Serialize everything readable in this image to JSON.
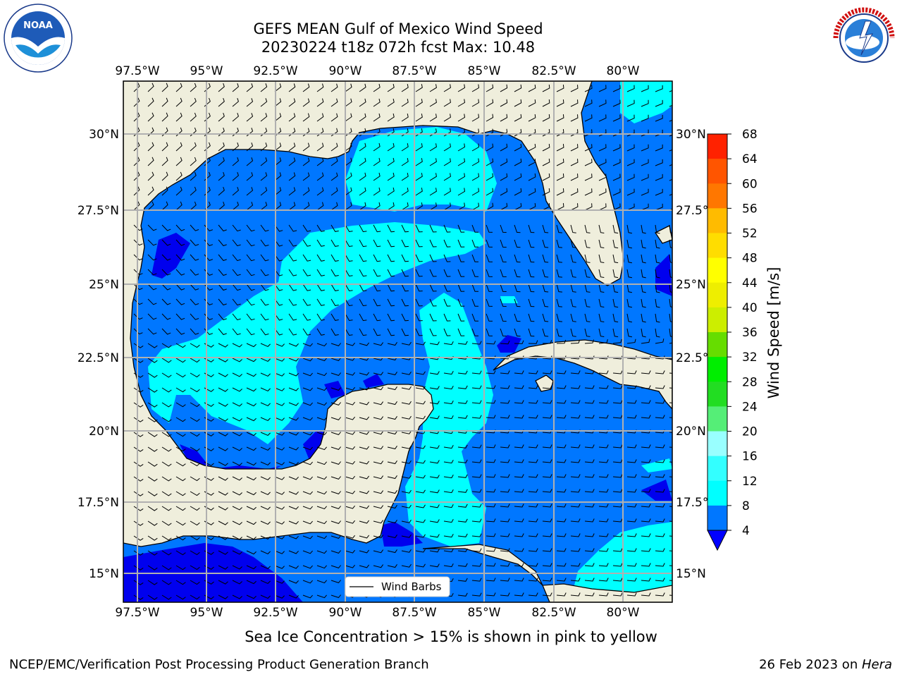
{
  "title": {
    "line1": "GEFS MEAN Gulf of Mexico Wind Speed",
    "line2": "20230224 t18z 072h fcst   Max: 10.48"
  },
  "logos": {
    "left": "NOAA",
    "right": "NATIONAL WEATHER SERVICE"
  },
  "map": {
    "lon_ticks": [
      "97.5°W",
      "95°W",
      "92.5°W",
      "90°W",
      "87.5°W",
      "85°W",
      "82.5°W",
      "80°W"
    ],
    "lat_ticks_left": [
      "30°N",
      "27.5°N",
      "25°N",
      "22.5°N",
      "20°N",
      "17.5°N",
      "15°N"
    ],
    "lat_ticks_right": [
      "30°N",
      "27.5°",
      "25°N",
      "22.5°",
      "20°N",
      "17.5°",
      "15°N"
    ],
    "legend_label": "Wind Barbs",
    "colors": {
      "land": "#efeedc",
      "grid": "#b0b0b0"
    }
  },
  "colorbar": {
    "label": "Wind Speed [m/s]",
    "ticks": [
      "4",
      "8",
      "12",
      "16",
      "20",
      "24",
      "28",
      "32",
      "36",
      "40",
      "44",
      "48",
      "52",
      "56",
      "60",
      "64",
      "68"
    ],
    "colors": [
      "#0077ff",
      "#00ffff",
      "#33ffff",
      "#66ffff",
      "#99ffff",
      "#55ee77",
      "#22dd22",
      "#00ee00",
      "#66dd00",
      "#aadd00",
      "#ccee00",
      "#eeee00",
      "#ffff00",
      "#ffdd00",
      "#ffbb00",
      "#ff9900",
      "#ff7700",
      "#ff5500",
      "#ff2200"
    ],
    "extend_color": "#0000ff"
  },
  "subtitle": "Sea Ice Concentration > 15% is shown in pink to yellow",
  "footer": {
    "left": "NCEP/EMC/Verification Post Processing Product Generation Branch",
    "right_date": "26 Feb 2023 on ",
    "right_host": "Hera"
  }
}
